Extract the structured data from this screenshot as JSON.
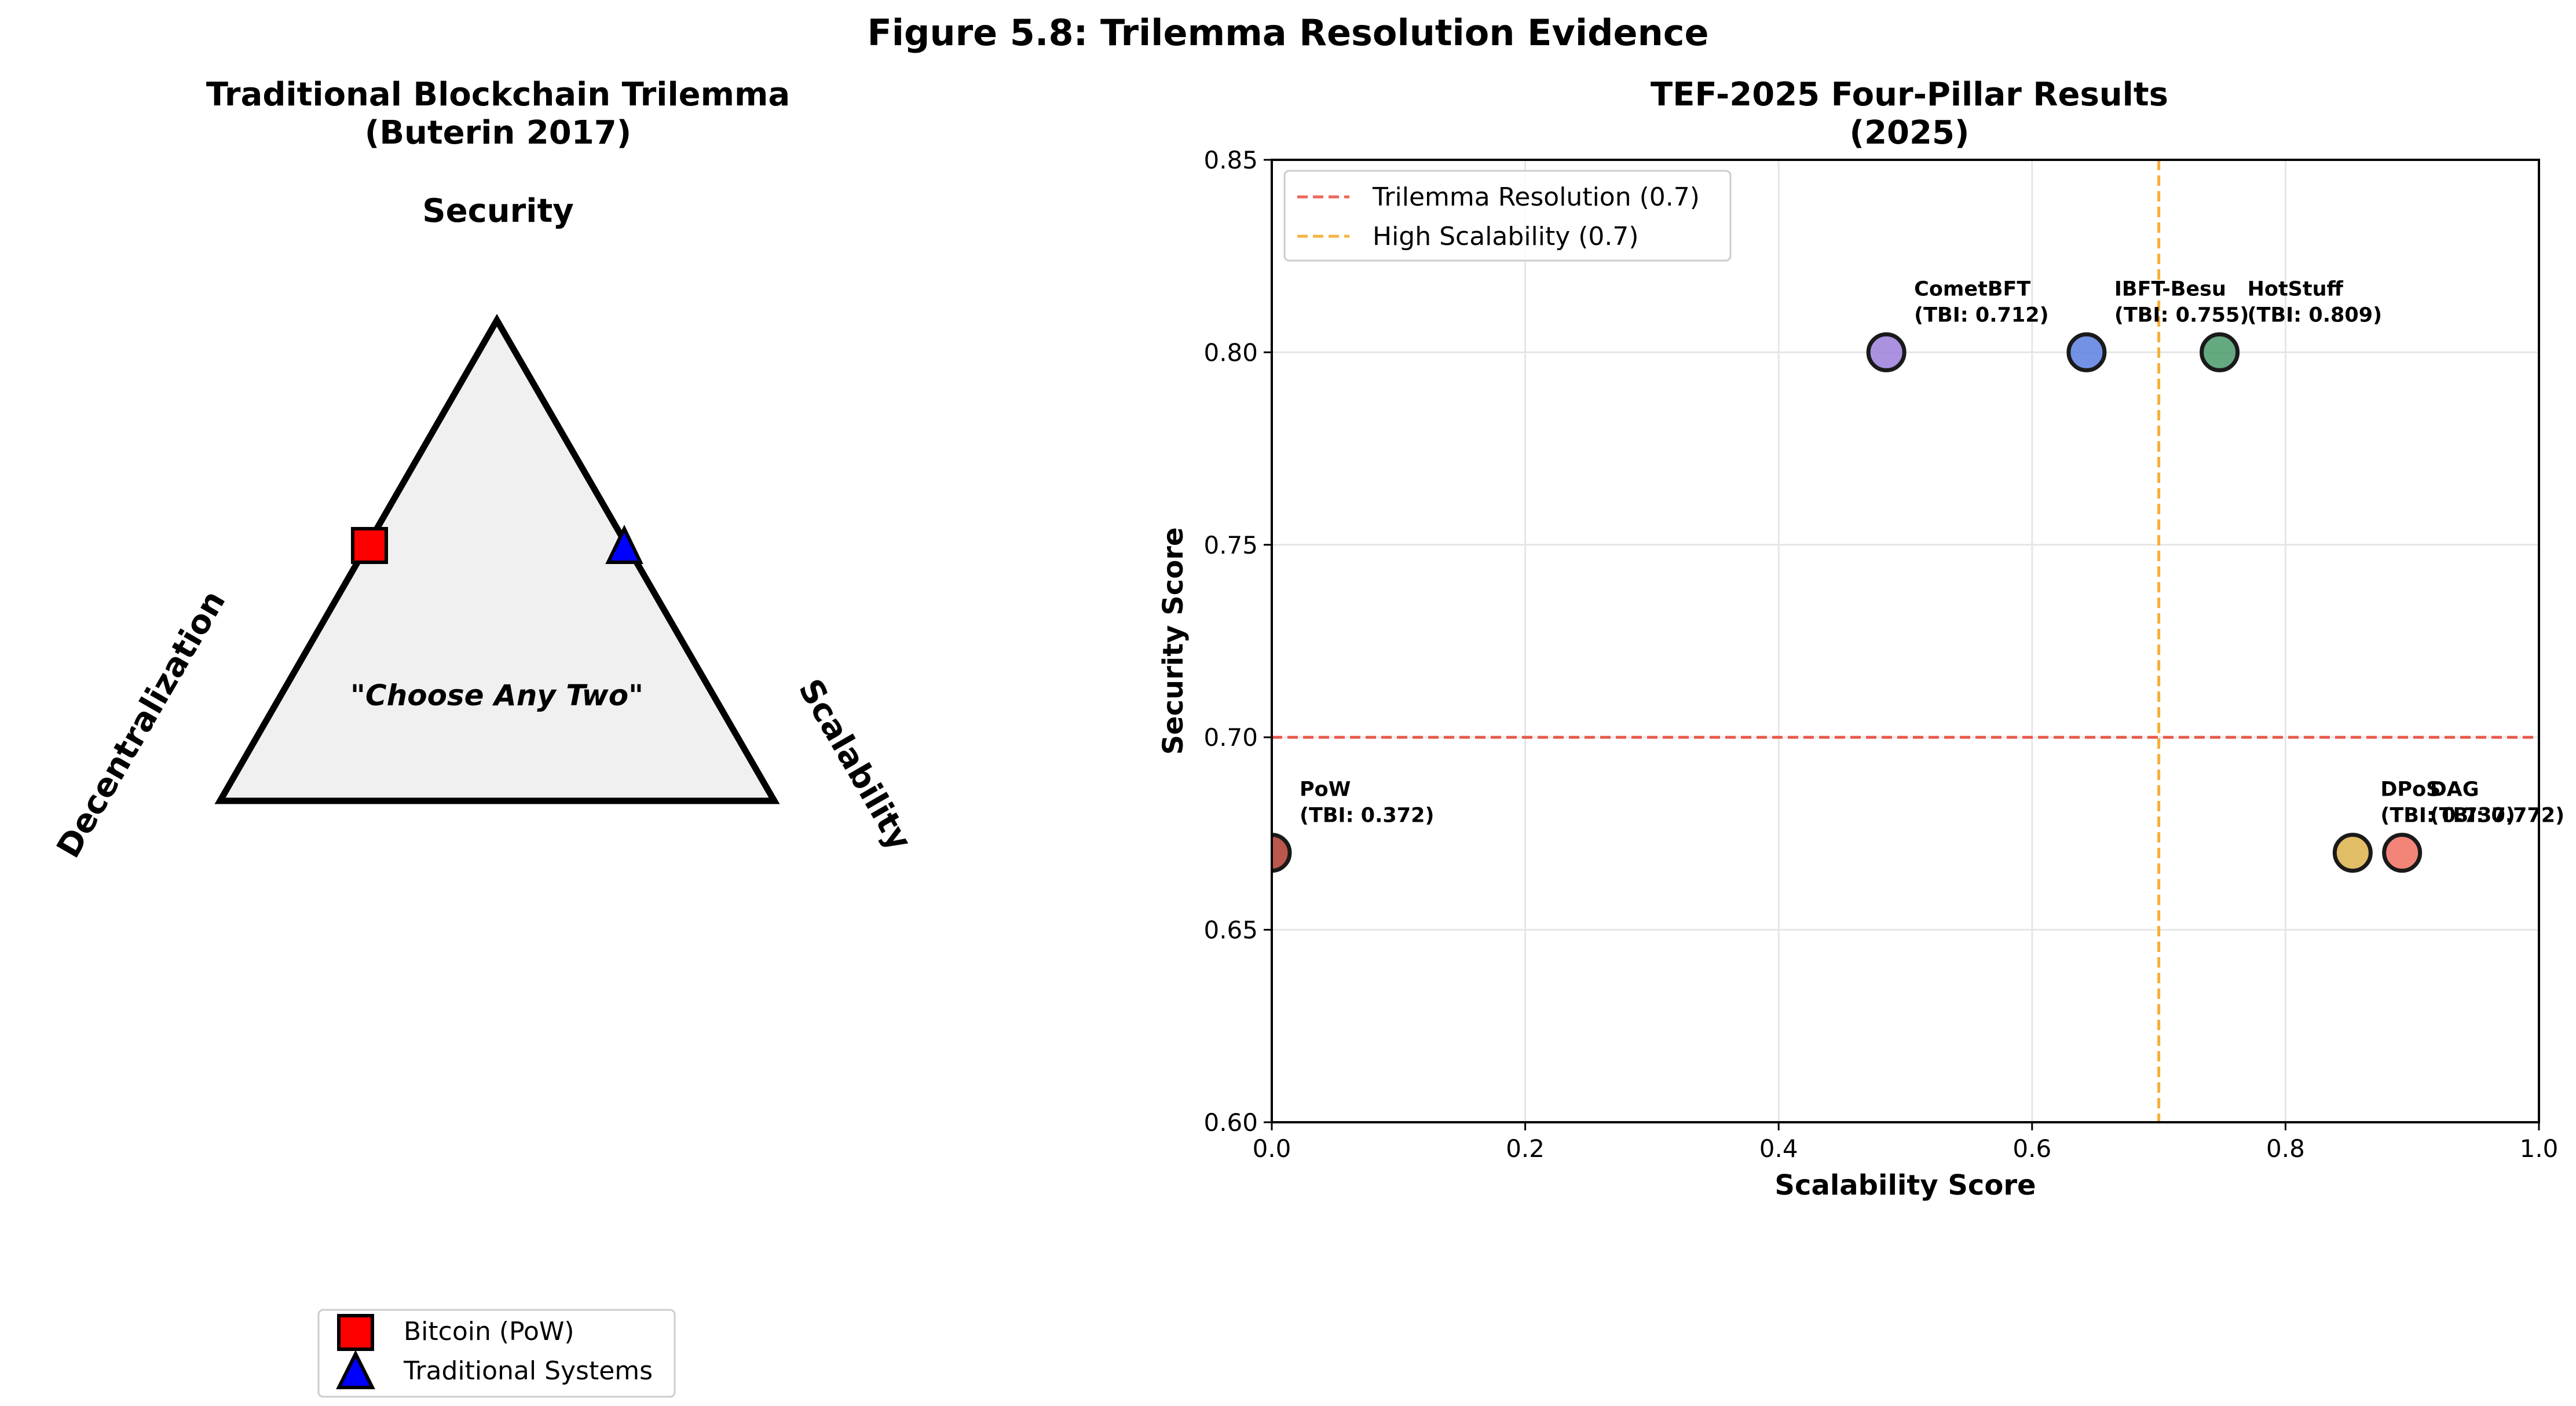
{
  "figure_title": "Figure 5.8: Trilemma Resolution Evidence",
  "left_panel": {
    "title_line1": "Traditional Blockchain Trilemma",
    "title_line2": "(Buterin 2017)",
    "vertex_labels": {
      "top": "Security",
      "left": "Decentralization",
      "right": "Scalability"
    },
    "center_text": "\"Choose Any Two\"",
    "triangle_fill": "#f0f0f0",
    "legend": [
      {
        "label": "Bitcoin (PoW)",
        "marker": "square",
        "color": "#ff0000"
      },
      {
        "label": "Traditional Systems",
        "marker": "triangle",
        "color": "#0000ff"
      }
    ]
  },
  "right_panel": {
    "title_line1": "TEF-2025 Four-Pillar Results",
    "title_line2": "(2025)"
  },
  "chart_data": [
    {
      "type": "scatter",
      "title": "TEF-2025 Four-Pillar Results (2025)",
      "xlabel": "Scalability Score",
      "ylabel": "Security Score",
      "xlim": [
        0.0,
        1.0
      ],
      "ylim": [
        0.6,
        0.85
      ],
      "xticks": [
        "0.0",
        "0.2",
        "0.4",
        "0.6",
        "0.8",
        "1.0"
      ],
      "yticks": [
        "0.60",
        "0.65",
        "0.70",
        "0.75",
        "0.80",
        "0.85"
      ],
      "grid": true,
      "legend_position": "top-left",
      "reference_lines": [
        {
          "orientation": "horizontal",
          "value": 0.7,
          "label": "Trilemma Resolution (0.7)",
          "color": "#e74c3c"
        },
        {
          "orientation": "vertical",
          "value": 0.7,
          "label": "High Scalability (0.7)",
          "color": "#f5a623"
        }
      ],
      "points": [
        {
          "name": "PoW",
          "tbi": "(TBI: 0.372)",
          "x": 0.0,
          "y": 0.67,
          "color": "#b03a2e"
        },
        {
          "name": "CometBFT",
          "tbi": "(TBI: 0.712)",
          "x": 0.485,
          "y": 0.8,
          "color": "#9b7fdc"
        },
        {
          "name": "IBFT-Besu",
          "tbi": "(TBI: 0.755)",
          "x": 0.643,
          "y": 0.8,
          "color": "#5b7fe0"
        },
        {
          "name": "HotStuff",
          "tbi": "(TBI: 0.809)",
          "x": 0.748,
          "y": 0.8,
          "color": "#4a9a6a"
        },
        {
          "name": "DPoS",
          "tbi": "(TBI: 0.737)",
          "x": 0.853,
          "y": 0.67,
          "color": "#dcb24a"
        },
        {
          "name": "DAG",
          "tbi": "(TBI: 0.772)",
          "x": 0.892,
          "y": 0.67,
          "color": "#f07060"
        }
      ]
    }
  ]
}
